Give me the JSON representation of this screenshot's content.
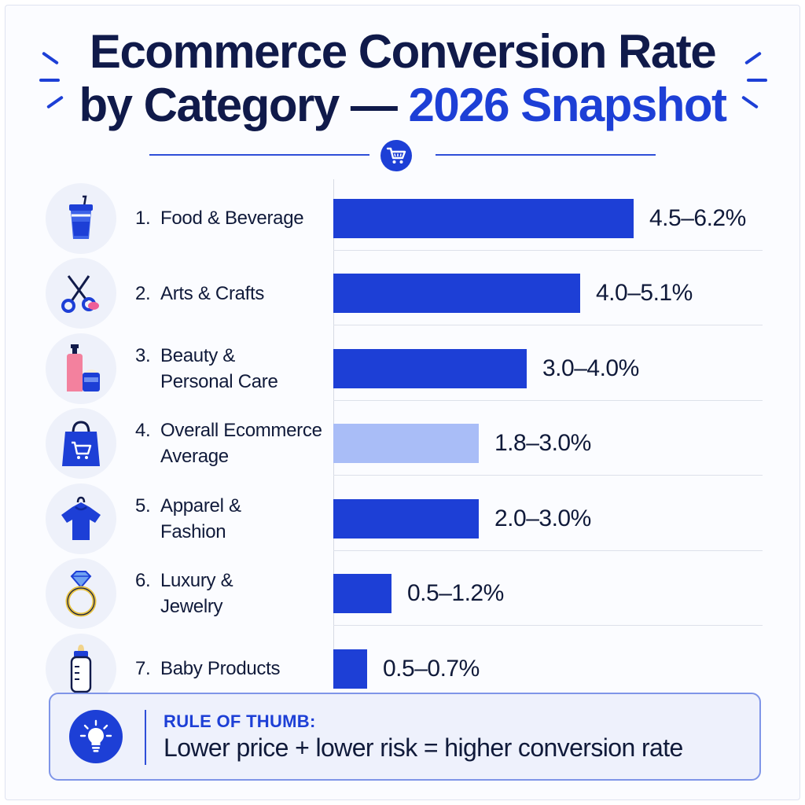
{
  "title": {
    "line1": "Ecommerce Conversion Rate",
    "line2_prefix": "by Category — ",
    "line2_accent": "2026 Snapshot"
  },
  "colors": {
    "bar": "#1d3fd6",
    "bar_highlight": "#a9bdf7",
    "accent": "#1d3fd6",
    "title": "#101a4a"
  },
  "chart_data": {
    "type": "bar",
    "orientation": "horizontal",
    "categories": [
      [
        "1.",
        "Food & Beverage"
      ],
      [
        "2.",
        "Arts & Crafts"
      ],
      [
        "3.",
        "Beauty &",
        "Personal Care"
      ],
      [
        "4.",
        "Overall Ecommerce",
        "Average"
      ],
      [
        "5.",
        "Apparel &",
        "Fashion"
      ],
      [
        "6.",
        "Luxury &",
        "Jewelry"
      ],
      [
        "7.",
        "Baby Products"
      ]
    ],
    "ranges": [
      [
        4.5,
        6.2
      ],
      [
        4.0,
        5.1
      ],
      [
        3.0,
        4.0
      ],
      [
        1.8,
        3.0
      ],
      [
        2.0,
        3.0
      ],
      [
        0.5,
        1.2
      ],
      [
        0.5,
        0.7
      ]
    ],
    "value_labels": [
      "4.5–6.2%",
      "4.0–5.1%",
      "3.0–4.0%",
      "1.8–3.0%",
      "2.0–3.0%",
      "0.5–1.2%",
      "0.5–0.7%"
    ],
    "highlight_index": 3,
    "icons": [
      "drink-cup-icon",
      "scissors-icon",
      "beauty-bottle-icon",
      "shopping-bag-icon",
      "t-shirt-icon",
      "diamond-ring-icon",
      "baby-bottle-icon"
    ],
    "xlim": [
      0,
      6.2
    ],
    "grid": false,
    "legend": "none"
  },
  "rule": {
    "heading": "RULE OF THUMB:",
    "text": "Lower price + lower risk = higher conversion rate"
  }
}
